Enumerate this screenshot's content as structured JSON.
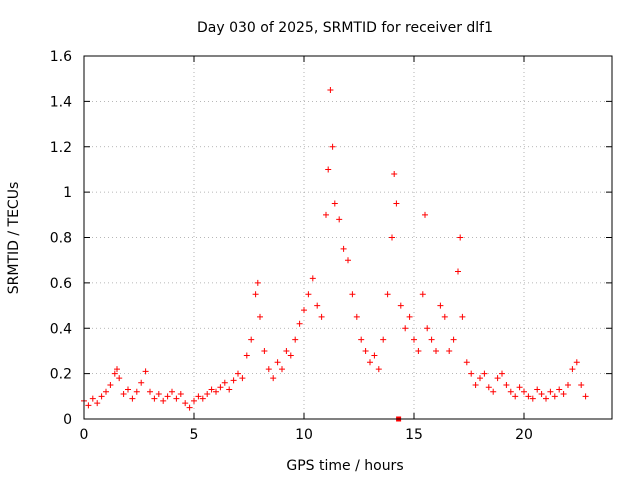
{
  "chart_data": {
    "type": "scatter",
    "title": "Day 030 of 2025, SRMTID for receiver dlf1",
    "xlabel": "GPS time / hours",
    "ylabel": "SRMTID / TECUs",
    "xlim": [
      0,
      24
    ],
    "ylim": [
      0,
      1.6
    ],
    "xticks": [
      0,
      5,
      10,
      15,
      20
    ],
    "xtick_labels": [
      "0",
      "5",
      "10",
      "15",
      "20"
    ],
    "yticks": [
      0,
      0.2,
      0.4,
      0.6,
      0.8,
      1,
      1.2,
      1.4,
      1.6
    ],
    "ytick_labels": [
      "0",
      "0.2",
      "0.4",
      "0.6",
      "0.8",
      "1",
      "1.2",
      "1.4",
      "1.6"
    ],
    "grid": true,
    "marker": "plus",
    "color": "#ff0000",
    "series": [
      {
        "name": "SRMTID",
        "points": [
          [
            0.0,
            0.08
          ],
          [
            0.2,
            0.06
          ],
          [
            0.4,
            0.09
          ],
          [
            0.6,
            0.07
          ],
          [
            0.8,
            0.1
          ],
          [
            1.0,
            0.12
          ],
          [
            1.2,
            0.15
          ],
          [
            1.4,
            0.2
          ],
          [
            1.5,
            0.22
          ],
          [
            1.6,
            0.18
          ],
          [
            1.8,
            0.11
          ],
          [
            2.0,
            0.13
          ],
          [
            2.2,
            0.09
          ],
          [
            2.4,
            0.12
          ],
          [
            2.6,
            0.16
          ],
          [
            2.8,
            0.21
          ],
          [
            3.0,
            0.12
          ],
          [
            3.2,
            0.09
          ],
          [
            3.4,
            0.11
          ],
          [
            3.6,
            0.08
          ],
          [
            3.8,
            0.1
          ],
          [
            4.0,
            0.12
          ],
          [
            4.2,
            0.09
          ],
          [
            4.4,
            0.11
          ],
          [
            4.6,
            0.07
          ],
          [
            4.8,
            0.05
          ],
          [
            5.0,
            0.08
          ],
          [
            5.2,
            0.1
          ],
          [
            5.4,
            0.09
          ],
          [
            5.6,
            0.11
          ],
          [
            5.8,
            0.13
          ],
          [
            6.0,
            0.12
          ],
          [
            6.2,
            0.14
          ],
          [
            6.4,
            0.16
          ],
          [
            6.6,
            0.13
          ],
          [
            6.8,
            0.17
          ],
          [
            7.0,
            0.2
          ],
          [
            7.2,
            0.18
          ],
          [
            7.4,
            0.28
          ],
          [
            7.6,
            0.35
          ],
          [
            7.8,
            0.55
          ],
          [
            7.9,
            0.6
          ],
          [
            8.0,
            0.45
          ],
          [
            8.2,
            0.3
          ],
          [
            8.4,
            0.22
          ],
          [
            8.6,
            0.18
          ],
          [
            8.8,
            0.25
          ],
          [
            9.0,
            0.22
          ],
          [
            9.2,
            0.3
          ],
          [
            9.4,
            0.28
          ],
          [
            9.6,
            0.35
          ],
          [
            9.8,
            0.42
          ],
          [
            10.0,
            0.48
          ],
          [
            10.2,
            0.55
          ],
          [
            10.4,
            0.62
          ],
          [
            10.6,
            0.5
          ],
          [
            10.8,
            0.45
          ],
          [
            11.0,
            0.9
          ],
          [
            11.1,
            1.1
          ],
          [
            11.2,
            1.45
          ],
          [
            11.3,
            1.2
          ],
          [
            11.4,
            0.95
          ],
          [
            11.6,
            0.88
          ],
          [
            11.8,
            0.75
          ],
          [
            12.0,
            0.7
          ],
          [
            12.2,
            0.55
          ],
          [
            12.4,
            0.45
          ],
          [
            12.6,
            0.35
          ],
          [
            12.8,
            0.3
          ],
          [
            13.0,
            0.25
          ],
          [
            13.2,
            0.28
          ],
          [
            13.4,
            0.22
          ],
          [
            13.6,
            0.35
          ],
          [
            13.8,
            0.55
          ],
          [
            14.0,
            0.8
          ],
          [
            14.1,
            1.08
          ],
          [
            14.2,
            0.95
          ],
          [
            14.4,
            0.5
          ],
          [
            14.6,
            0.4
          ],
          [
            14.8,
            0.45
          ],
          [
            15.0,
            0.35
          ],
          [
            15.2,
            0.3
          ],
          [
            15.4,
            0.55
          ],
          [
            15.5,
            0.9
          ],
          [
            15.6,
            0.4
          ],
          [
            15.8,
            0.35
          ],
          [
            16.0,
            0.3
          ],
          [
            16.2,
            0.5
          ],
          [
            16.4,
            0.45
          ],
          [
            16.6,
            0.3
          ],
          [
            16.8,
            0.35
          ],
          [
            17.0,
            0.65
          ],
          [
            17.1,
            0.8
          ],
          [
            17.2,
            0.45
          ],
          [
            17.4,
            0.25
          ],
          [
            17.6,
            0.2
          ],
          [
            17.8,
            0.15
          ],
          [
            18.0,
            0.18
          ],
          [
            18.2,
            0.2
          ],
          [
            18.4,
            0.14
          ],
          [
            18.6,
            0.12
          ],
          [
            18.8,
            0.18
          ],
          [
            19.0,
            0.2
          ],
          [
            19.2,
            0.15
          ],
          [
            19.4,
            0.12
          ],
          [
            19.6,
            0.1
          ],
          [
            19.8,
            0.14
          ],
          [
            20.0,
            0.12
          ],
          [
            20.2,
            0.1
          ],
          [
            20.4,
            0.09
          ],
          [
            20.6,
            0.13
          ],
          [
            20.8,
            0.11
          ],
          [
            21.0,
            0.09
          ],
          [
            21.2,
            0.12
          ],
          [
            21.4,
            0.1
          ],
          [
            21.6,
            0.13
          ],
          [
            21.8,
            0.11
          ],
          [
            22.0,
            0.15
          ],
          [
            22.2,
            0.22
          ],
          [
            22.4,
            0.25
          ],
          [
            22.6,
            0.15
          ],
          [
            22.8,
            0.1
          ]
        ]
      }
    ],
    "outlier_marker": {
      "x": 14.3,
      "y": 0.0,
      "shape": "square"
    }
  }
}
